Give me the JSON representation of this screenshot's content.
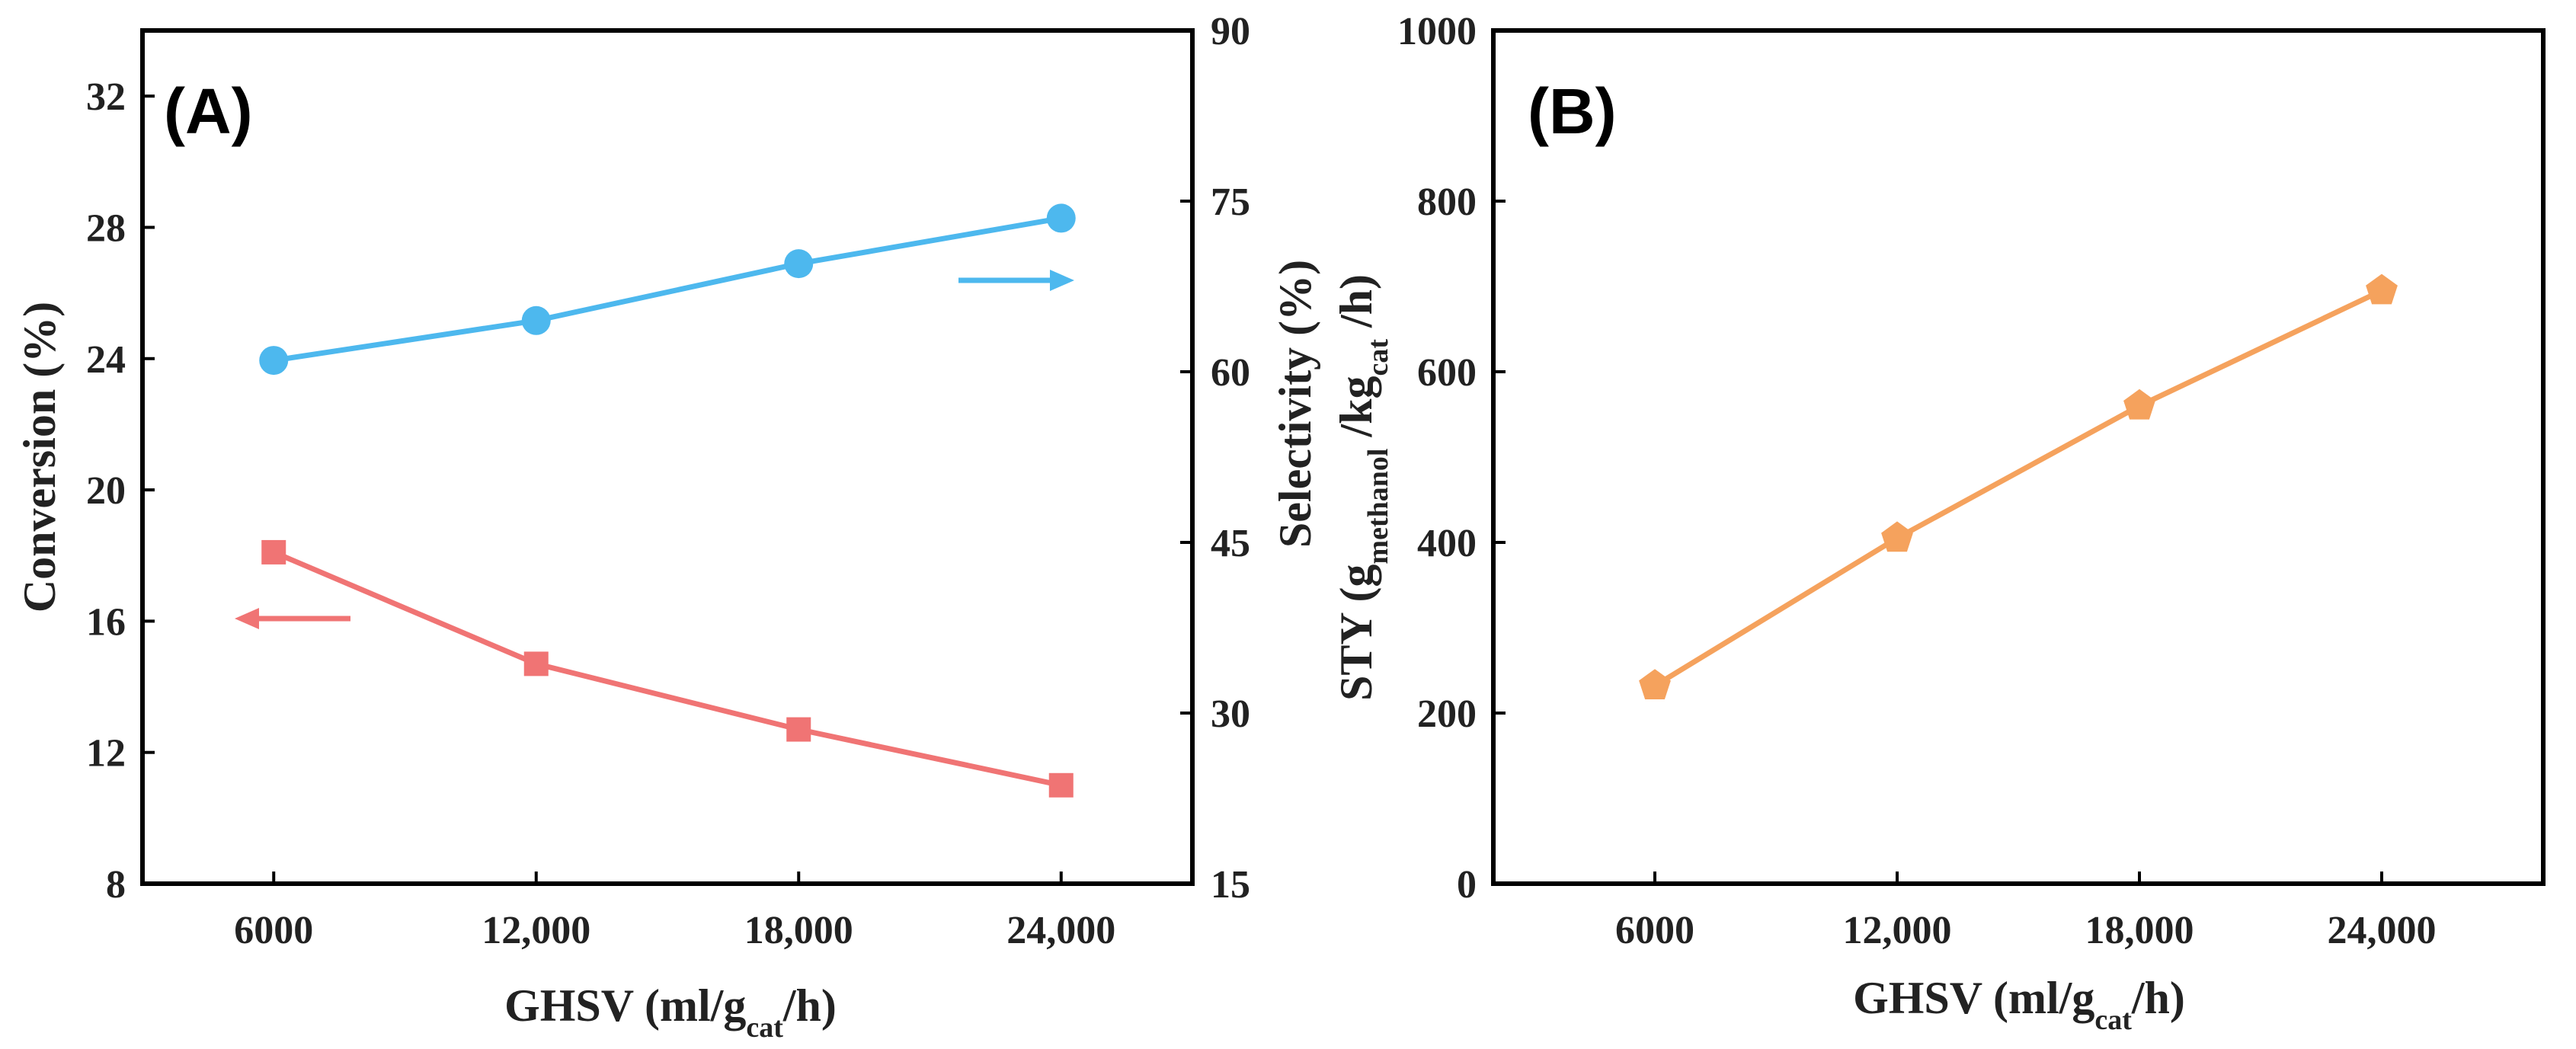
{
  "chart_data": [
    {
      "type": "line",
      "panel_label": "(A)",
      "categories": [
        "6000",
        "12,000",
        "18,000",
        "24,000"
      ],
      "x": [
        6000,
        12000,
        18000,
        24000
      ],
      "xlim": [
        3000,
        27000
      ],
      "xlabel": {
        "main": "GHSV (ml/g",
        "sub": "cat",
        "tail": "/h)"
      },
      "ylabel_left": "Conversion (%)",
      "ylabel_right": {
        "main": "Selectivity (%)"
      },
      "ylim_left": [
        8,
        34
      ],
      "yticks_left": [
        8,
        12,
        16,
        20,
        24,
        28,
        32
      ],
      "ylim_right": [
        15,
        90
      ],
      "yticks_right": [
        15,
        30,
        45,
        60,
        75,
        90
      ],
      "series": [
        {
          "name": "Conversion",
          "axis": "left",
          "marker": "square",
          "color": "#f07474",
          "values": [
            18.1,
            14.7,
            12.7,
            11.0
          ],
          "arrow": "left"
        },
        {
          "name": "Selectivity",
          "axis": "right",
          "marker": "circle",
          "color": "#4db8ee",
          "values": [
            61.0,
            64.5,
            69.5,
            73.5
          ],
          "arrow": "right"
        }
      ]
    },
    {
      "type": "line",
      "panel_label": "(B)",
      "categories": [
        "6000",
        "12,000",
        "18,000",
        "24,000"
      ],
      "x": [
        6000,
        12000,
        18000,
        24000
      ],
      "xlim": [
        2000,
        28000
      ],
      "xlabel": {
        "main": "GHSV (ml/g",
        "sub": "cat",
        "tail": "/h)"
      },
      "ylabel": {
        "main": "STY (g",
        "sub1": "methanol",
        "mid": " /kg",
        "sub2": "cat",
        "tail": " /h)"
      },
      "ylim": [
        0,
        1000
      ],
      "yticks": [
        0,
        200,
        400,
        600,
        800,
        1000
      ],
      "series": [
        {
          "name": "STY",
          "marker": "pentagon",
          "color": "#f5a25d",
          "values": [
            232,
            405,
            560,
            695
          ]
        }
      ]
    }
  ]
}
